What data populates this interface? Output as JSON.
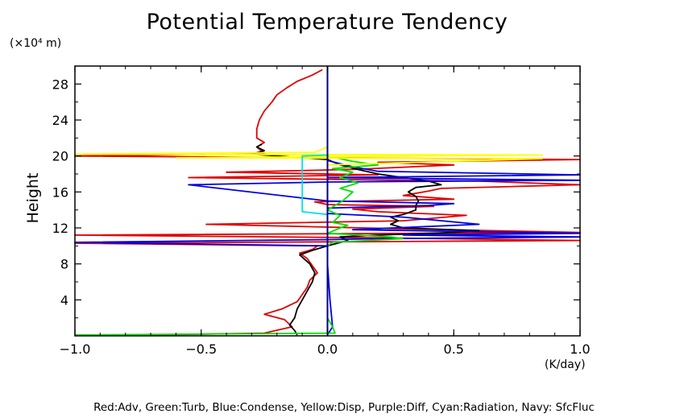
{
  "chart_data": {
    "type": "line",
    "title": "Potential Temperature Tendency",
    "xlabel": "(K/day)",
    "ylabel": "Height",
    "y_unit_label": "(×10⁴ m)",
    "xlim": [
      -1.0,
      1.0
    ],
    "ylim": [
      0,
      30
    ],
    "x_ticks": [
      "−1.0",
      "−0.5",
      "0.0",
      "0.5",
      "1.0"
    ],
    "x_tick_values": [
      -1.0,
      -0.5,
      0.0,
      0.5,
      1.0
    ],
    "y_ticks": [
      "4",
      "8",
      "12",
      "16",
      "20",
      "24",
      "28"
    ],
    "y_tick_values": [
      4,
      8,
      12,
      16,
      20,
      24,
      28
    ],
    "grid": false,
    "legend_text": "Red:Adv, Green:Turb, Blue:Condense, Yellow:Disp, Purple:Diff, Cyan:Radiation, Navy: SfcFluc",
    "colors": {
      "red": "#e00000",
      "green": "#00e000",
      "blue": "#0000e0",
      "yellow": "#ffff00",
      "cyan": "#00e0e0",
      "navy": "#000080",
      "black": "#000000"
    },
    "series": [
      {
        "color": "red",
        "points": [
          [
            -0.7,
            0.1
          ],
          [
            -0.25,
            0.3
          ],
          [
            -0.14,
            1.0
          ],
          [
            -0.17,
            1.8
          ],
          [
            -0.25,
            2.4
          ],
          [
            -0.18,
            3.0
          ],
          [
            -0.12,
            3.8
          ],
          [
            -0.1,
            4.6
          ],
          [
            -0.08,
            5.4
          ],
          [
            -0.07,
            6.2
          ],
          [
            -0.04,
            7.0
          ],
          [
            -0.06,
            7.8
          ],
          [
            -0.08,
            8.6
          ],
          [
            -0.11,
            9.2
          ],
          [
            -0.06,
            9.6
          ],
          [
            -0.04,
            10.0
          ],
          [
            -1.0,
            10.3
          ],
          [
            1.0,
            10.6
          ],
          [
            0.2,
            10.9
          ],
          [
            -1.0,
            11.2
          ],
          [
            1.0,
            11.5
          ],
          [
            0.3,
            11.9
          ],
          [
            -0.48,
            12.4
          ],
          [
            0.3,
            12.8
          ],
          [
            0.55,
            13.4
          ],
          [
            0.2,
            13.8
          ],
          [
            0.1,
            14.1
          ],
          [
            0.42,
            14.4
          ],
          [
            0.0,
            14.6
          ],
          [
            -0.05,
            14.9
          ],
          [
            0.5,
            15.2
          ],
          [
            0.3,
            15.6
          ],
          [
            0.4,
            16.1
          ],
          [
            0.45,
            16.4
          ],
          [
            1.0,
            16.8
          ],
          [
            0.6,
            17.2
          ],
          [
            -0.55,
            17.6
          ],
          [
            0.2,
            17.9
          ],
          [
            -0.4,
            18.2
          ],
          [
            0.1,
            18.5
          ],
          [
            0.5,
            19.0
          ],
          [
            0.2,
            19.3
          ],
          [
            1.0,
            19.6
          ],
          [
            -1.0,
            20.0
          ],
          [
            -0.25,
            20.3
          ],
          [
            -0.28,
            21.0
          ],
          [
            -0.25,
            21.5
          ],
          [
            -0.28,
            22.0
          ],
          [
            -0.28,
            23.0
          ],
          [
            -0.27,
            24.0
          ],
          [
            -0.25,
            25.0
          ],
          [
            -0.22,
            26.0
          ],
          [
            -0.2,
            26.8
          ],
          [
            -0.16,
            27.6
          ],
          [
            -0.12,
            28.3
          ],
          [
            -0.06,
            29.0
          ],
          [
            -0.02,
            29.6
          ]
        ]
      },
      {
        "color": "black",
        "points": [
          [
            -0.12,
            0.1
          ],
          [
            -0.13,
            0.6
          ],
          [
            -0.15,
            1.2
          ],
          [
            -0.13,
            2.0
          ],
          [
            -0.12,
            3.0
          ],
          [
            -0.1,
            4.0
          ],
          [
            -0.08,
            5.0
          ],
          [
            -0.06,
            6.0
          ],
          [
            -0.05,
            7.0
          ],
          [
            -0.07,
            8.0
          ],
          [
            -0.11,
            9.0
          ],
          [
            -0.06,
            9.5
          ],
          [
            0.0,
            10.0
          ],
          [
            0.08,
            10.6
          ],
          [
            0.05,
            11.0
          ],
          [
            0.2,
            11.2
          ],
          [
            0.5,
            11.5
          ],
          [
            0.6,
            11.7
          ],
          [
            0.3,
            12.0
          ],
          [
            0.25,
            12.4
          ],
          [
            0.28,
            12.8
          ],
          [
            0.25,
            13.2
          ],
          [
            0.3,
            13.5
          ],
          [
            0.35,
            14.0
          ],
          [
            0.35,
            14.5
          ],
          [
            0.36,
            15.0
          ],
          [
            0.35,
            15.5
          ],
          [
            0.32,
            16.0
          ],
          [
            0.35,
            16.5
          ],
          [
            0.45,
            16.8
          ],
          [
            0.4,
            17.2
          ],
          [
            0.3,
            17.6
          ],
          [
            0.2,
            18.0
          ],
          [
            0.12,
            18.5
          ],
          [
            0.05,
            19.0
          ],
          [
            0.0,
            19.6
          ],
          [
            -0.3,
            20.2
          ],
          [
            -0.25,
            20.6
          ],
          [
            -0.28,
            21.0
          ],
          [
            -0.26,
            21.3
          ]
        ]
      },
      {
        "color": "blue",
        "points": [
          [
            0.0,
            0.1
          ],
          [
            0.02,
            1.0
          ],
          [
            0.01,
            4.0
          ],
          [
            0.0,
            8.0
          ],
          [
            0.0,
            10.0
          ],
          [
            -1.0,
            10.4
          ],
          [
            0.0,
            10.7
          ],
          [
            0.2,
            10.8
          ],
          [
            1.0,
            11.0
          ],
          [
            0.3,
            11.2
          ],
          [
            1.0,
            11.4
          ],
          [
            0.1,
            11.8
          ],
          [
            0.6,
            12.4
          ],
          [
            0.3,
            13.2
          ],
          [
            0.0,
            13.6
          ],
          [
            0.0,
            14.2
          ],
          [
            0.4,
            14.5
          ],
          [
            0.5,
            14.7
          ],
          [
            0.0,
            15.0
          ],
          [
            -0.55,
            16.8
          ],
          [
            0.0,
            17.1
          ],
          [
            1.0,
            17.3
          ],
          [
            0.0,
            17.6
          ],
          [
            1.0,
            17.9
          ],
          [
            0.2,
            18.3
          ],
          [
            0.1,
            18.8
          ],
          [
            0.0,
            19.5
          ],
          [
            0.0,
            30.0
          ]
        ]
      },
      {
        "color": "green",
        "points": [
          [
            -1.0,
            0.1
          ],
          [
            0.03,
            0.3
          ],
          [
            0.02,
            1.0
          ],
          [
            0.0,
            2.0
          ],
          [
            0.0,
            8.0
          ],
          [
            0.0,
            10.0
          ],
          [
            0.02,
            10.4
          ],
          [
            0.3,
            10.8
          ],
          [
            0.25,
            11.0
          ],
          [
            0.0,
            11.4
          ],
          [
            0.05,
            12.0
          ],
          [
            0.08,
            12.3
          ],
          [
            0.02,
            12.6
          ],
          [
            0.05,
            13.4
          ],
          [
            0.0,
            14.0
          ],
          [
            0.06,
            15.0
          ],
          [
            0.1,
            16.0
          ],
          [
            0.05,
            16.4
          ],
          [
            0.12,
            17.0
          ],
          [
            0.05,
            17.6
          ],
          [
            0.1,
            18.2
          ],
          [
            0.02,
            18.6
          ],
          [
            0.2,
            19.0
          ],
          [
            0.1,
            19.4
          ],
          [
            0.0,
            20.0
          ],
          [
            0.0,
            30.0
          ]
        ]
      },
      {
        "color": "yellow",
        "points": [
          [
            0.0,
            0.1
          ],
          [
            0.0,
            19.0
          ],
          [
            0.85,
            19.7
          ],
          [
            -0.6,
            19.8
          ],
          [
            0.85,
            20.1
          ],
          [
            -1.0,
            20.2
          ],
          [
            -0.05,
            20.4
          ],
          [
            0.0,
            21.0
          ],
          [
            0.0,
            30.0
          ]
        ]
      },
      {
        "color": "cyan",
        "points": [
          [
            0.0,
            0.1
          ],
          [
            0.0,
            13.5
          ],
          [
            -0.1,
            13.8
          ],
          [
            -0.1,
            20.0
          ],
          [
            0.0,
            20.1
          ],
          [
            0.0,
            30.0
          ]
        ]
      },
      {
        "color": "navy",
        "points": [
          [
            0.0,
            0.1
          ],
          [
            0.0,
            30.0
          ]
        ]
      }
    ]
  }
}
